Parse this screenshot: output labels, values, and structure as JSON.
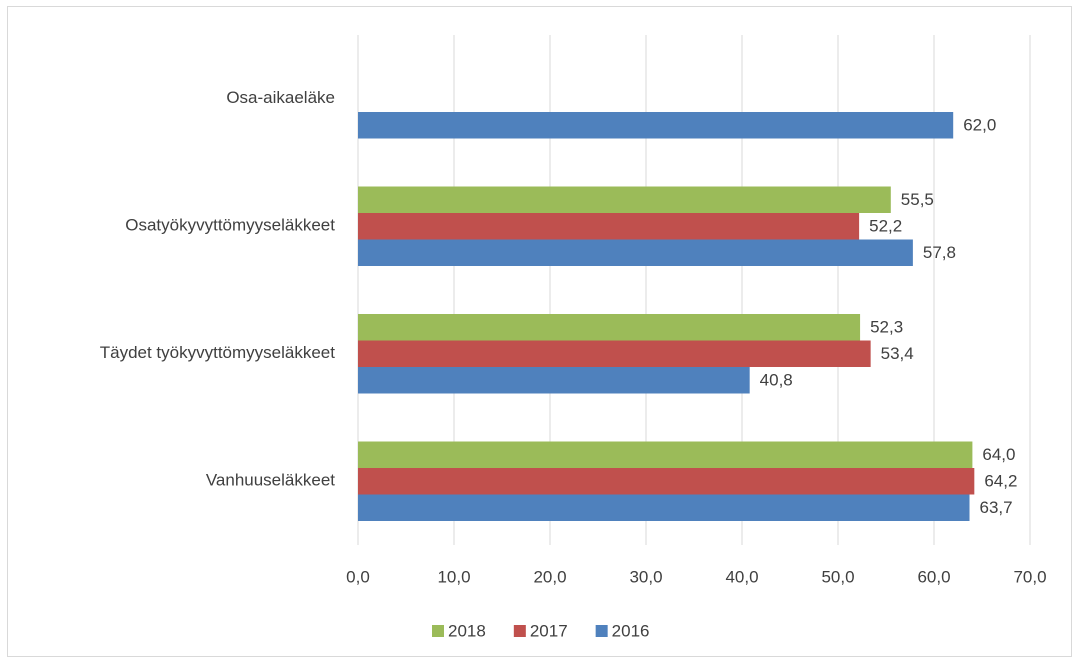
{
  "chart_data": {
    "type": "bar",
    "orientation": "horizontal",
    "categories": [
      "Osa-aikaeläke",
      "Osatyökyvyttömyyseläkkeet",
      "Täydet työkyvyttömyyseläkkeet",
      "Vanhuuseläkkeet"
    ],
    "series": [
      {
        "name": "2018",
        "color": "#9bbb59",
        "values": [
          null,
          55.5,
          52.3,
          64.0
        ],
        "value_labels": [
          null,
          "55,5",
          "52,3",
          "64,0"
        ]
      },
      {
        "name": "2017",
        "color": "#c0504d",
        "values": [
          null,
          52.2,
          53.4,
          64.2
        ],
        "value_labels": [
          null,
          "52,2",
          "53,4",
          "64,2"
        ]
      },
      {
        "name": "2016",
        "color": "#4f81bd",
        "values": [
          62.0,
          57.8,
          40.8,
          63.7
        ],
        "value_labels": [
          "62,0",
          "57,8",
          "40,8",
          "63,7"
        ]
      }
    ],
    "xlim": [
      0,
      70
    ],
    "xticks": [
      {
        "value": 0,
        "label": "0,0"
      },
      {
        "value": 10,
        "label": "10,0"
      },
      {
        "value": 20,
        "label": "20,0"
      },
      {
        "value": 30,
        "label": "30,0"
      },
      {
        "value": 40,
        "label": "40,0"
      },
      {
        "value": 50,
        "label": "50,0"
      },
      {
        "value": 60,
        "label": "60,0"
      },
      {
        "value": 70,
        "label": "70,0"
      }
    ],
    "grid": true,
    "legend": "bottom"
  }
}
